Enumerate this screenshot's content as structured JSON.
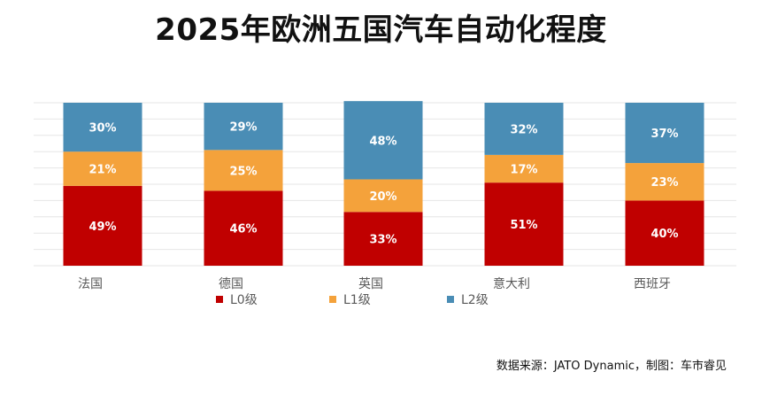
{
  "chart_data": {
    "type": "bar",
    "stacked": true,
    "normalized_percent": true,
    "title": "2025年欧洲五国汽车自动化程度",
    "categories": [
      "法国",
      "德国",
      "英国",
      "意大利",
      "西班牙"
    ],
    "series": [
      {
        "name": "L0级",
        "color": "#c00000",
        "values": [
          49,
          46,
          33,
          51,
          40
        ],
        "labels": [
          "49%",
          "46%",
          "33%",
          "51%",
          "40%"
        ]
      },
      {
        "name": "L1级",
        "color": "#f4a23b",
        "values": [
          21,
          25,
          20,
          17,
          23
        ],
        "labels": [
          "21%",
          "25%",
          "20%",
          "17%",
          "23%"
        ]
      },
      {
        "name": "L2级",
        "color": "#4a8db5",
        "values": [
          30,
          29,
          48,
          32,
          37
        ],
        "labels": [
          "30%",
          "29%",
          "48%",
          "32%",
          "37%"
        ]
      }
    ],
    "ylim": [
      0,
      100
    ],
    "xlabel": "",
    "ylabel": "",
    "grid": true,
    "legend_position": "bottom"
  },
  "source_note": "数据来源：JATO Dynamic，制图：车市睿见",
  "colors": {
    "grid": "#e6e6e6",
    "label_text": "#ffffff",
    "axis_text": "#595959"
  }
}
